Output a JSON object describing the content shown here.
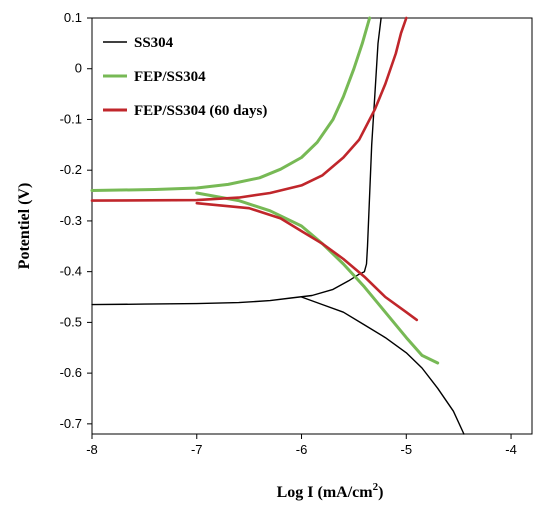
{
  "chart_data": {
    "type": "line",
    "title": "",
    "xlabel": "Log I (mA/cm",
    "xlabel_sup": "2",
    "xlabel_close": ")",
    "ylabel": "Potentiel (V)",
    "xlim": [
      -8,
      -3.8
    ],
    "ylim": [
      -0.72,
      0.1
    ],
    "xticks": [
      "-8",
      "-7",
      "-6",
      "-5",
      "-4"
    ],
    "yticks": [
      "0.1",
      "0",
      "-0.1",
      "-0.2",
      "-0.3",
      "-0.4",
      "-0.5",
      "-0.6",
      "-0.7"
    ],
    "grid": false,
    "legend_position": "top-left",
    "series": [
      {
        "name": "SS304",
        "color": "#000000",
        "branches": [
          [
            [
              -8,
              -0.465
            ],
            [
              -7.5,
              -0.464
            ],
            [
              -7.0,
              -0.463
            ],
            [
              -6.6,
              -0.461
            ],
            [
              -6.3,
              -0.457
            ],
            [
              -6.1,
              -0.452
            ],
            [
              -5.9,
              -0.447
            ],
            [
              -5.7,
              -0.435
            ],
            [
              -5.55,
              -0.418
            ],
            [
              -5.45,
              -0.405
            ],
            [
              -5.4,
              -0.4
            ],
            [
              -5.38,
              -0.385
            ],
            [
              -5.37,
              -0.35
            ],
            [
              -5.35,
              -0.25
            ],
            [
              -5.33,
              -0.15
            ],
            [
              -5.3,
              -0.05
            ],
            [
              -5.27,
              0.05
            ],
            [
              -5.24,
              0.1
            ]
          ],
          [
            [
              -6.0,
              -0.45
            ],
            [
              -5.8,
              -0.465
            ],
            [
              -5.6,
              -0.48
            ],
            [
              -5.4,
              -0.505
            ],
            [
              -5.2,
              -0.53
            ],
            [
              -5.0,
              -0.56
            ],
            [
              -4.85,
              -0.59
            ],
            [
              -4.7,
              -0.63
            ],
            [
              -4.55,
              -0.675
            ],
            [
              -4.45,
              -0.72
            ]
          ]
        ]
      },
      {
        "name": "FEP/SS304",
        "color": "#77b955",
        "branches": [
          [
            [
              -8,
              -0.24
            ],
            [
              -7.4,
              -0.238
            ],
            [
              -7.0,
              -0.235
            ],
            [
              -6.7,
              -0.228
            ],
            [
              -6.4,
              -0.215
            ],
            [
              -6.2,
              -0.198
            ],
            [
              -6.0,
              -0.175
            ],
            [
              -5.85,
              -0.145
            ],
            [
              -5.7,
              -0.1
            ],
            [
              -5.6,
              -0.055
            ],
            [
              -5.5,
              0.0
            ],
            [
              -5.42,
              0.05
            ],
            [
              -5.35,
              0.1
            ]
          ],
          [
            [
              -7.0,
              -0.245
            ],
            [
              -6.6,
              -0.26
            ],
            [
              -6.3,
              -0.28
            ],
            [
              -6.0,
              -0.31
            ],
            [
              -5.8,
              -0.345
            ],
            [
              -5.6,
              -0.385
            ],
            [
              -5.4,
              -0.43
            ],
            [
              -5.2,
              -0.48
            ],
            [
              -5.0,
              -0.53
            ],
            [
              -4.85,
              -0.565
            ],
            [
              -4.7,
              -0.58
            ]
          ]
        ]
      },
      {
        "name": "FEP/SS304 (60 days)",
        "color": "#c0262b",
        "branches": [
          [
            [
              -8,
              -0.26
            ],
            [
              -7.0,
              -0.259
            ],
            [
              -6.6,
              -0.254
            ],
            [
              -6.3,
              -0.245
            ],
            [
              -6.0,
              -0.23
            ],
            [
              -5.8,
              -0.21
            ],
            [
              -5.6,
              -0.175
            ],
            [
              -5.45,
              -0.14
            ],
            [
              -5.3,
              -0.08
            ],
            [
              -5.2,
              -0.03
            ],
            [
              -5.1,
              0.03
            ],
            [
              -5.05,
              0.07
            ],
            [
              -5.0,
              0.1
            ]
          ],
          [
            [
              -7.0,
              -0.265
            ],
            [
              -6.5,
              -0.275
            ],
            [
              -6.2,
              -0.295
            ],
            [
              -6.0,
              -0.32
            ],
            [
              -5.8,
              -0.345
            ],
            [
              -5.6,
              -0.375
            ],
            [
              -5.4,
              -0.41
            ],
            [
              -5.2,
              -0.45
            ],
            [
              -5.0,
              -0.48
            ],
            [
              -4.9,
              -0.495
            ]
          ]
        ]
      }
    ]
  }
}
